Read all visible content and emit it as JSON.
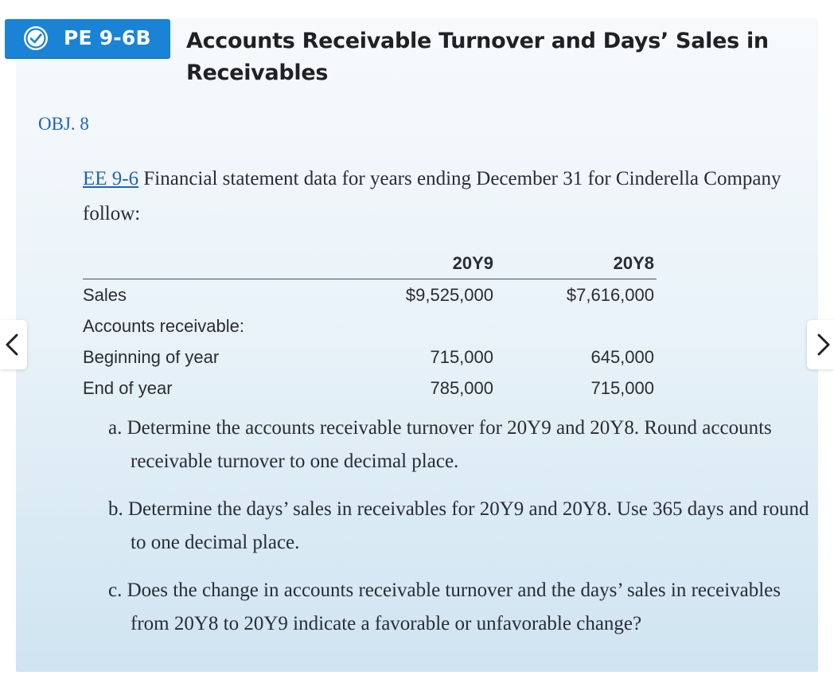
{
  "badge": {
    "icon": "check-circle-icon",
    "label": "PE 9-6B"
  },
  "title": "Accounts Receivable Turnover and Days’ Sales in Receivables",
  "objective": "OBJ. 8",
  "intro": {
    "link_text": "EE 9-6",
    "text": " Financial statement data for years ending December 31 for Cinderella Company follow:"
  },
  "table": {
    "headers": [
      "20Y9",
      "20Y8"
    ],
    "rows": [
      {
        "label": "Sales",
        "values": [
          "$9,525,000",
          "$7,616,000"
        ]
      },
      {
        "label": "Accounts receivable:",
        "values": [
          "",
          ""
        ]
      },
      {
        "label": "Beginning of year",
        "values": [
          "715,000",
          "645,000"
        ]
      },
      {
        "label": "End of year",
        "values": [
          "785,000",
          "715,000"
        ]
      }
    ]
  },
  "questions": [
    "a. Determine the accounts receivable turnover for 20Y9 and 20Y8. Round accounts receivable turnover to one decimal place.",
    "b. Determine the days’ sales in receivables for 20Y9 and 20Y8. Use 365 days and round to one decimal place.",
    "c. Does the change in accounts receivable turnover and the days’ sales in receivables from 20Y8 to 20Y9 indicate a favorable or unfavorable change?"
  ],
  "nav": {
    "prev_icon": "chevron-left-icon",
    "next_icon": "chevron-right-icon"
  },
  "colors": {
    "badge": "#1b83d6",
    "link": "#1f65b6"
  }
}
